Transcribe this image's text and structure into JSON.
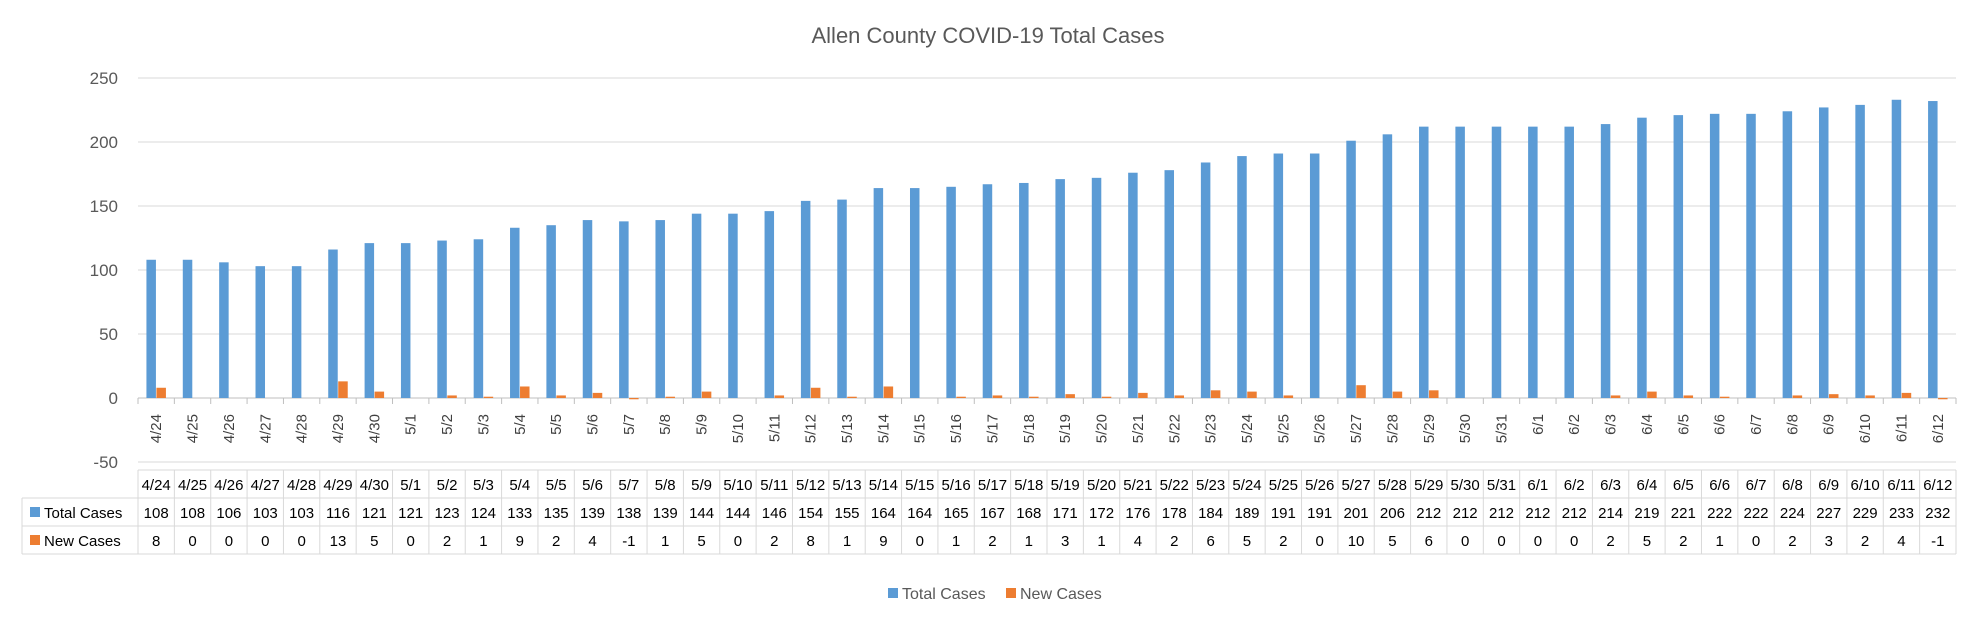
{
  "chart_data": {
    "type": "bar",
    "title": "Allen County COVID-19 Total Cases",
    "categories": [
      "4/24",
      "4/25",
      "4/26",
      "4/27",
      "4/28",
      "4/29",
      "4/30",
      "5/1",
      "5/2",
      "5/3",
      "5/4",
      "5/5",
      "5/6",
      "5/7",
      "5/8",
      "5/9",
      "5/10",
      "5/11",
      "5/12",
      "5/13",
      "5/14",
      "5/15",
      "5/16",
      "5/17",
      "5/18",
      "5/19",
      "5/20",
      "5/21",
      "5/22",
      "5/23",
      "5/24",
      "5/25",
      "5/26",
      "5/27",
      "5/28",
      "5/29",
      "5/30",
      "5/31",
      "6/1",
      "6/2",
      "6/3",
      "6/4",
      "6/5",
      "6/6",
      "6/7",
      "6/8",
      "6/9",
      "6/10",
      "6/11",
      "6/12"
    ],
    "series": [
      {
        "name": "Total Cases",
        "color": "#5B9BD5",
        "values": [
          108,
          108,
          106,
          103,
          103,
          116,
          121,
          121,
          123,
          124,
          133,
          135,
          139,
          138,
          139,
          144,
          144,
          146,
          154,
          155,
          164,
          164,
          165,
          167,
          168,
          171,
          172,
          176,
          178,
          184,
          189,
          191,
          191,
          201,
          206,
          212,
          212,
          212,
          212,
          212,
          214,
          219,
          221,
          222,
          222,
          224,
          227,
          229,
          233,
          232
        ]
      },
      {
        "name": "New Cases",
        "color": "#ED7D31",
        "values": [
          8,
          0,
          0,
          0,
          0,
          13,
          5,
          0,
          2,
          1,
          9,
          2,
          4,
          -1,
          1,
          5,
          0,
          2,
          8,
          1,
          9,
          0,
          1,
          2,
          1,
          3,
          1,
          4,
          2,
          6,
          5,
          2,
          0,
          10,
          5,
          6,
          0,
          0,
          0,
          0,
          2,
          5,
          2,
          1,
          0,
          2,
          3,
          2,
          4,
          -1
        ]
      }
    ],
    "ylim": [
      -50,
      250
    ],
    "yticks": [
      -50,
      0,
      50,
      100,
      150,
      200,
      250
    ],
    "grid": true,
    "legend": "bottom",
    "data_table": true
  }
}
